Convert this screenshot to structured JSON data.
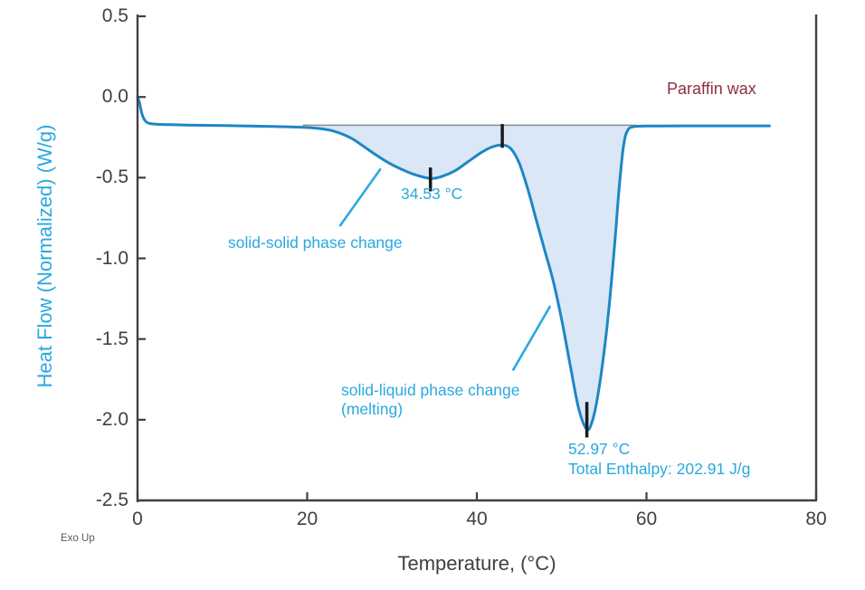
{
  "colors": {
    "curve": "#1E86C5",
    "fill": "#D9E7F6",
    "annotation_blue": "#29A9E0",
    "sample_maroon": "#8E2F40",
    "axis_dark": "#414042",
    "baseline_gray": "#8C8C8C",
    "marker_black": "#1A1A1A",
    "exo_gray": "#58595B"
  },
  "axes": {
    "x": {
      "title": "Temperature, (°C)",
      "range": [
        0,
        80
      ],
      "tick_values": [
        0,
        20,
        40,
        60,
        80
      ],
      "tick_labels": [
        "0",
        "20",
        "40",
        "60",
        "80"
      ]
    },
    "y": {
      "title": "Heat Flow (Normalized) (W/g)",
      "range": [
        -2.5,
        0.5
      ],
      "tick_values": [
        0.5,
        0.0,
        -0.5,
        -1.0,
        -1.5,
        -2.0,
        -2.5
      ],
      "tick_labels": [
        "0.5",
        "0.0",
        "-0.5",
        "-1.0",
        "-1.5",
        "-2.0",
        "-2.5"
      ]
    }
  },
  "annotations": {
    "sample": "Paraffin wax",
    "peak1_temp": "34.53 °C",
    "peak1_desc": "solid-solid phase change",
    "peak2_desc_line1": "solid-liquid phase change",
    "peak2_desc_line2": "(melting)",
    "peak2_temp": "52.97 °C",
    "peak2_enthalpy": "Total Enthalpy: 202.91 J/g",
    "exo_note": "Exo Up"
  },
  "chart_data": {
    "type": "line",
    "title": "",
    "xlabel": "Temperature, (°C)",
    "ylabel": "Heat Flow (Normalized) (W/g)",
    "xlim": [
      0,
      80
    ],
    "ylim": [
      -2.5,
      0.5
    ],
    "grid": false,
    "legend_position": "top-right-inside",
    "series": [
      {
        "name": "Paraffin wax",
        "x": [
          0,
          0.2,
          0.5,
          0.8,
          1.2,
          2,
          4,
          7,
          10,
          13,
          16,
          19,
          21,
          23,
          25,
          26.5,
          28,
          29.5,
          31,
          32.5,
          34.53,
          36,
          37.5,
          39,
          40.5,
          41.8,
          43,
          44,
          45,
          46,
          47,
          48,
          49,
          50,
          51,
          52,
          52.97,
          53.6,
          54.2,
          55,
          55.7,
          56.3,
          56.8,
          57.3,
          57.8,
          58.6,
          60,
          64,
          70,
          74.5
        ],
        "y": [
          0,
          -0.03,
          -0.1,
          -0.14,
          -0.16,
          -0.168,
          -0.172,
          -0.175,
          -0.177,
          -0.18,
          -0.183,
          -0.187,
          -0.193,
          -0.21,
          -0.25,
          -0.3,
          -0.355,
          -0.405,
          -0.445,
          -0.478,
          -0.505,
          -0.49,
          -0.455,
          -0.4,
          -0.345,
          -0.31,
          -0.298,
          -0.32,
          -0.41,
          -0.57,
          -0.76,
          -0.95,
          -1.14,
          -1.38,
          -1.66,
          -1.93,
          -2.06,
          -2.01,
          -1.87,
          -1.58,
          -1.24,
          -0.88,
          -0.55,
          -0.3,
          -0.205,
          -0.183,
          -0.18,
          -0.179,
          -0.179,
          -0.179
        ]
      }
    ],
    "integration_baseline": {
      "value": -0.175,
      "x_start": 19.5,
      "x_end": 58.8
    },
    "fill_between_curve_and_baseline": {
      "x_start": 19,
      "x_end": 58.6
    },
    "peaks": [
      {
        "temp_c": 34.53,
        "heat_flow": -0.505,
        "label": "solid-solid phase change"
      },
      {
        "temp_c": 52.97,
        "heat_flow": -2.06,
        "label": "solid-liquid phase change (melting)",
        "total_enthalpy_J_per_g": 202.91
      }
    ],
    "peak_markers": [
      {
        "x": 34.53,
        "y1": -0.437,
        "y2": -0.585
      },
      {
        "x": 43.0,
        "y1": -0.168,
        "y2": -0.315
      },
      {
        "x": 52.97,
        "y1": -1.89,
        "y2": -2.11
      }
    ],
    "leader_lines": [
      {
        "x1": 28.6,
        "y1": -0.449,
        "x2": 23.9,
        "y2": -0.796
      },
      {
        "x1": 48.6,
        "y1": -1.3,
        "x2": 44.3,
        "y2": -1.69
      }
    ]
  }
}
